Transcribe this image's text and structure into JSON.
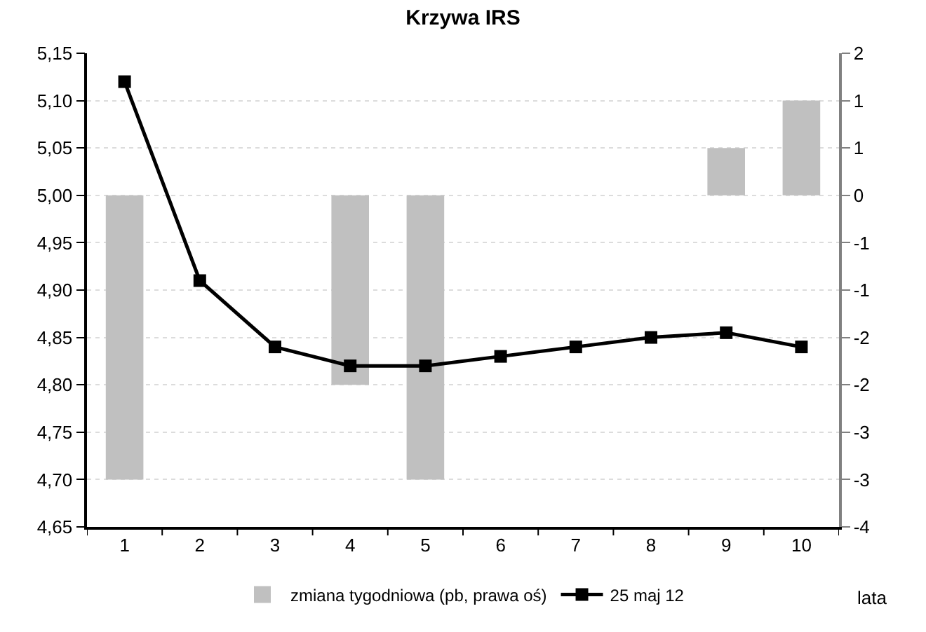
{
  "chart_data": {
    "type": "line",
    "title": "Krzywa IRS",
    "xlabel": "lata",
    "categories": [
      "1",
      "2",
      "3",
      "4",
      "5",
      "6",
      "7",
      "8",
      "9",
      "10"
    ],
    "series": [
      {
        "name": "zmiana tygodniowa (pb, prawa oś)",
        "type": "bar",
        "axis": "y2",
        "color": "#c0c0c0",
        "values": [
          -3,
          null,
          null,
          -2,
          -3,
          null,
          null,
          null,
          0.5,
          1
        ]
      },
      {
        "name": "25 maj 12",
        "color": "#000000",
        "marker": "square",
        "values": [
          5.12,
          4.91,
          4.84,
          4.82,
          4.82,
          4.83,
          4.84,
          4.85,
          4.855,
          4.84
        ]
      }
    ],
    "ylim": [
      4.65,
      5.15
    ],
    "yticks": [
      {
        "value": 4.65,
        "label": "4,65"
      },
      {
        "value": 4.7,
        "label": "4,70"
      },
      {
        "value": 4.75,
        "label": "4,75"
      },
      {
        "value": 4.8,
        "label": "4,80"
      },
      {
        "value": 4.85,
        "label": "4,85"
      },
      {
        "value": 4.9,
        "label": "4,90"
      },
      {
        "value": 4.95,
        "label": "4,95"
      },
      {
        "value": 5.0,
        "label": "5,00"
      },
      {
        "value": 5.05,
        "label": "5,05"
      },
      {
        "value": 5.1,
        "label": "5,10"
      },
      {
        "value": 5.15,
        "label": "5,15"
      }
    ],
    "y2lim": [
      -3.5,
      1.5
    ],
    "y2ticks": [
      {
        "value": -3.5,
        "label": "-4"
      },
      {
        "value": -3,
        "label": "-3"
      },
      {
        "value": -2.5,
        "label": "-3"
      },
      {
        "value": -2,
        "label": "-2"
      },
      {
        "value": -1.5,
        "label": "-2"
      },
      {
        "value": -1,
        "label": "-1"
      },
      {
        "value": -0.5,
        "label": "-1"
      },
      {
        "value": 0,
        "label": "0"
      },
      {
        "value": 0.5,
        "label": "1"
      },
      {
        "value": 1,
        "label": "1"
      },
      {
        "value": 1.5,
        "label": "2"
      }
    ],
    "grid": "y",
    "legend": "bottom"
  }
}
